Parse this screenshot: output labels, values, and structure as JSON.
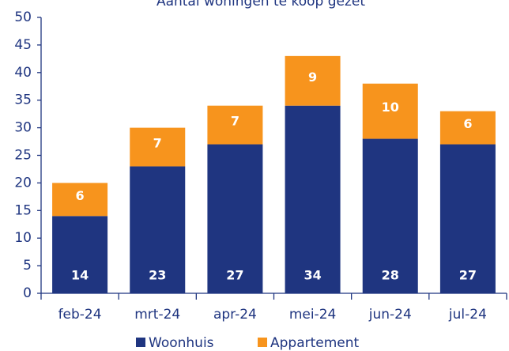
{
  "chart_data": {
    "type": "stacked_bar",
    "title": "Aantal woningen te koop gezet",
    "categories": [
      "feb-24",
      "mrt-24",
      "apr-24",
      "mei-24",
      "jun-24",
      "jul-24"
    ],
    "series": [
      {
        "name": "Woonhuis",
        "color": "#1f3580",
        "values": [
          14,
          23,
          27,
          34,
          28,
          27
        ]
      },
      {
        "name": "Appartement",
        "color": "#f7941d",
        "values": [
          6,
          7,
          7,
          9,
          10,
          6
        ]
      }
    ],
    "ylim": [
      0,
      50
    ],
    "yticks": [
      0,
      5,
      10,
      15,
      20,
      25,
      30,
      35,
      40,
      45,
      50
    ],
    "legend": "bottom",
    "grid": false
  }
}
